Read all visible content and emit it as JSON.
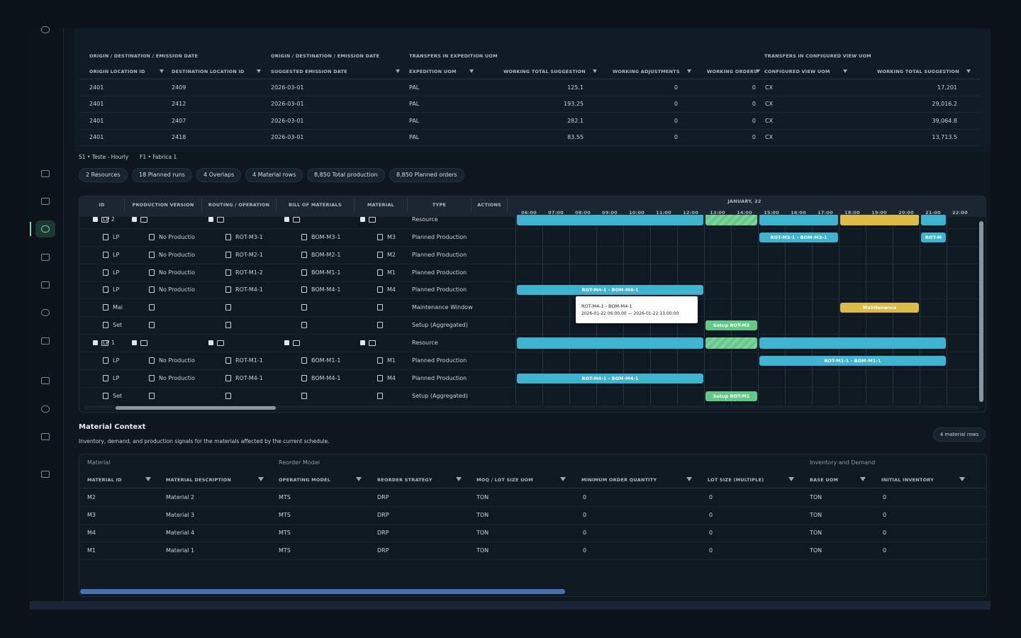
{
  "transfers": {
    "group_headers": [
      "ORIGIN / DESTINATION / EMISSION DATE",
      "ORIGIN / DESTINATION / EMISSION DATE",
      "TRANSFERS IN EXPEDITION UOM",
      "TRANSFERS IN CONFIGURED VIEW UOM"
    ],
    "columns": [
      "ORIGIN LOCATION ID",
      "DESTINATION LOCATION ID",
      "SUGGESTED EMISSION DATE",
      "EXPEDITION UOM",
      "WORKING TOTAL SUGGESTION",
      "WORKING ADJUSTMENTS",
      "WORKING ORDERS",
      "CONFIGURED VIEW UOM",
      "WORKING TOTAL SUGGESTION"
    ],
    "rows": [
      [
        "2401",
        "2409",
        "2026-03-01",
        "PAL",
        "125.1",
        "0",
        "0",
        "CX",
        "17,201"
      ],
      [
        "2401",
        "2412",
        "2026-03-01",
        "PAL",
        "193.25",
        "0",
        "0",
        "CX",
        "29,016.2"
      ],
      [
        "2401",
        "2407",
        "2026-03-01",
        "PAL",
        "282.1",
        "0",
        "0",
        "CX",
        "39,064.8"
      ],
      [
        "2401",
        "2418",
        "2026-03-01",
        "PAL",
        "83.55",
        "0",
        "0",
        "CX",
        "13,713.5"
      ]
    ]
  },
  "context": [
    "S1 • Teste - Hourly",
    "F1 • Fabrica 1"
  ],
  "chips": [
    "2 Resources",
    "18 Planned runs",
    "4 Overlaps",
    "4 Material rows",
    "8,850 Total production",
    "8,850 Planned orders"
  ],
  "gantt": {
    "columns": [
      "ID",
      "PRODUCTION VERSION",
      "ROUTING / OPERATION",
      "BILL OF MATERIALS",
      "MATERIAL",
      "TYPE",
      "ACTIONS"
    ],
    "date": "JANUARY, 22",
    "hours": [
      {
        "value": 6,
        "label": "06:00"
      },
      {
        "value": 7,
        "label": "07:00"
      },
      {
        "value": 8,
        "label": "08:00"
      },
      {
        "value": 9,
        "label": "09:00"
      },
      {
        "value": 10,
        "label": "10:00"
      },
      {
        "value": 11,
        "label": "11:00"
      },
      {
        "value": 12,
        "label": "12:00"
      },
      {
        "value": 13,
        "label": "13:00"
      },
      {
        "value": 14,
        "label": "14:00"
      },
      {
        "value": 15,
        "label": "15:00"
      },
      {
        "value": 16,
        "label": "16:00"
      },
      {
        "value": 17,
        "label": "17:00"
      },
      {
        "value": 18,
        "label": "18:00"
      },
      {
        "value": 19,
        "label": "19:00"
      },
      {
        "value": 20,
        "label": "20:00"
      },
      {
        "value": 21,
        "label": "21:00"
      },
      {
        "value": 22,
        "label": "22:00"
      }
    ],
    "rows": [
      {
        "id": "LP 2",
        "type": "Resource",
        "bars": [
          {
            "start": 6,
            "end": 13,
            "color": "#3db5d0"
          },
          {
            "start": 13,
            "end": 15,
            "color": "#62c987"
          },
          {
            "start": 15,
            "end": 18,
            "color": "#3db5d0"
          },
          {
            "start": 18,
            "end": 21,
            "color": "#dcbb47"
          },
          {
            "start": 21,
            "end": 22,
            "color": "#3db5d0"
          }
        ]
      },
      {
        "id": "LP",
        "version": "No Productio",
        "routing": "ROT-M3-1",
        "bom": "BOM-M3-1",
        "material": "M3",
        "type": "Planned Production",
        "bars": [
          {
            "start": 15,
            "end": 18,
            "color": "#3db5d0",
            "label": "ROT-M3-1 - BOM-M3-1"
          },
          {
            "start": 21,
            "end": 22,
            "color": "#3db5d0",
            "label": "ROT-M"
          }
        ]
      },
      {
        "id": "LP",
        "version": "No Productio",
        "routing": "ROT-M2-1",
        "bom": "BOM-M2-1",
        "material": "M2",
        "type": "Planned Production"
      },
      {
        "id": "LP",
        "version": "No Productio",
        "routing": "ROT-M1-2",
        "bom": "BOM-M1-1",
        "material": "M1",
        "type": "Planned Production"
      },
      {
        "id": "LP",
        "version": "No Productio",
        "routing": "ROT-M4-1",
        "bom": "BOM-M4-1",
        "material": "M4",
        "type": "Planned Production",
        "bars": [
          {
            "start": 6,
            "end": 13,
            "color": "#3db5d0",
            "label": "ROT-M4-1 - BOM-M4-1"
          }
        ]
      },
      {
        "id": "Mai",
        "type": "Maintenance Window",
        "bars": [
          {
            "start": 18,
            "end": 21,
            "color": "#dcbb47",
            "label": "Maintenance"
          }
        ]
      },
      {
        "id": "Set",
        "type": "Setup (Aggregated)",
        "bars": [
          {
            "start": 13,
            "end": 15,
            "color": "#62c987",
            "label": "Setup ROT-M3"
          }
        ]
      },
      {
        "id": "LP 1",
        "type": "Resource",
        "bars": [
          {
            "start": 6,
            "end": 13,
            "color": "#3db5d0"
          },
          {
            "start": 13,
            "end": 15,
            "color": "#62c987"
          },
          {
            "start": 15,
            "end": 22,
            "color": "#3db5d0"
          }
        ]
      },
      {
        "id": "LP",
        "version": "No Productio",
        "routing": "ROT-M1-1",
        "bom": "BOM-M1-1",
        "material": "M1",
        "type": "Planned Production",
        "bars": [
          {
            "start": 15,
            "end": 22,
            "color": "#3db5d0",
            "label": "ROT-M1-1 - BOM-M1-1"
          }
        ]
      },
      {
        "id": "LP",
        "version": "No Productio",
        "routing": "ROT-M4-1",
        "bom": "BOM-M4-1",
        "material": "M4",
        "type": "Planned Production",
        "bars": [
          {
            "start": 6,
            "end": 13,
            "color": "#3db5d0",
            "label": "ROT-M4-1 - BOM-M4-1"
          }
        ]
      },
      {
        "id": "Set",
        "type": "Setup (Aggregated)",
        "bars": [
          {
            "start": 13,
            "end": 15,
            "color": "#62c987",
            "label": "Setup ROT-M1"
          }
        ]
      }
    ],
    "tooltip": {
      "title": "ROT-M4-1 - BOM-M4-1",
      "range": "2026-01-22 06:00:00 — 2026-01-22 13:00:00"
    }
  },
  "material": {
    "title": "Material Context",
    "subtitle": "Inventory, demand, and production signals for the materials affected by the current schedule.",
    "badge": "4 material rows",
    "group_headers": [
      "Material",
      "Reorder Model",
      "Inventory and Demand"
    ],
    "columns": [
      "MATERIAL ID",
      "MATERIAL DESCRIPTION",
      "OPERATING MODEL",
      "REORDER STRATEGY",
      "MOQ / LOT SIZE UOM",
      "MINIMUM ORDER QUANTITY",
      "LOT SIZE (MULTIPLE)",
      "BASE UOM",
      "INITIAL INVENTORY"
    ],
    "rows": [
      [
        "M2",
        "Material 2",
        "MTS",
        "DRP",
        "TON",
        "0",
        "0",
        "TON",
        "0"
      ],
      [
        "M3",
        "Material 3",
        "MTS",
        "DRP",
        "TON",
        "0",
        "0",
        "TON",
        "0"
      ],
      [
        "M4",
        "Material 4",
        "MTS",
        "DRP",
        "TON",
        "0",
        "0",
        "TON",
        "0"
      ],
      [
        "M1",
        "Material 1",
        "MTS",
        "DRP",
        "TON",
        "0",
        "0",
        "TON",
        "0"
      ]
    ]
  }
}
